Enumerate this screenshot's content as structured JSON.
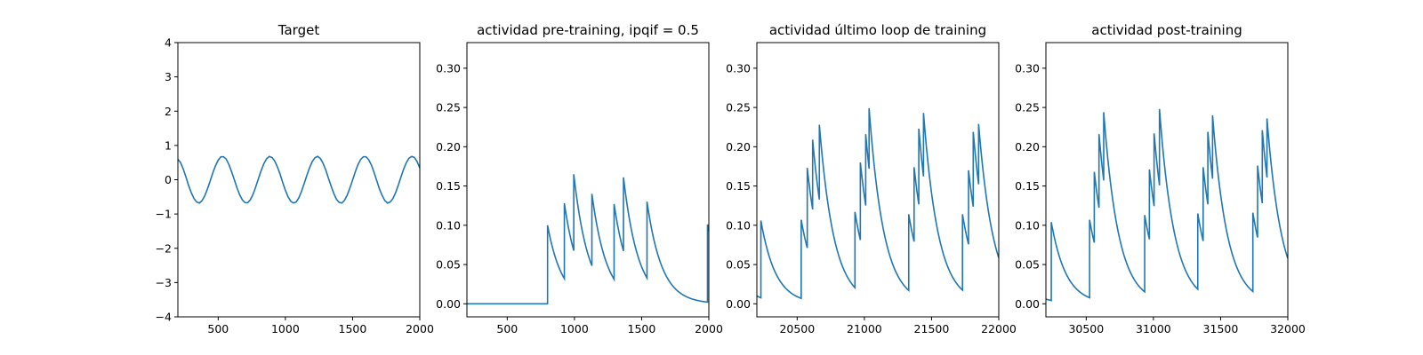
{
  "chart_data": [
    {
      "type": "line",
      "title": "Target",
      "xlim": [
        200,
        2000
      ],
      "ylim": [
        -4,
        4
      ],
      "xticks": [
        500,
        1000,
        1500,
        2000
      ],
      "yticks": [
        -4,
        -3,
        -2,
        -1,
        0,
        1,
        2,
        3,
        4
      ],
      "ytick_labels": [
        "−4",
        "−3",
        "−2",
        "−1",
        "0",
        "1",
        "2",
        "3",
        "4"
      ],
      "series": [
        {
          "color": "#1f77b4",
          "x": [
            200,
            220,
            240,
            260,
            280,
            300,
            320,
            340,
            360,
            380,
            400,
            420,
            440,
            460,
            480,
            500,
            520,
            540,
            560,
            580,
            600,
            620,
            640,
            660,
            680,
            700,
            720,
            740,
            760,
            780,
            800,
            820,
            840,
            860,
            880,
            900,
            920,
            940,
            960,
            980,
            1000,
            1020,
            1040,
            1060,
            1080,
            1100,
            1120,
            1140,
            1160,
            1180,
            1200,
            1220,
            1240,
            1260,
            1280,
            1300,
            1320,
            1340,
            1360,
            1380,
            1400,
            1420,
            1440,
            1460,
            1480,
            1500,
            1520,
            1540,
            1560,
            1580,
            1600,
            1620,
            1640,
            1660,
            1680,
            1700,
            1720,
            1740,
            1760,
            1780,
            1800,
            1820,
            1840,
            1860,
            1880,
            1900,
            1920,
            1940,
            1960,
            1980,
            2000
          ],
          "y": [
            0.6,
            0.5,
            0.31,
            0.08,
            -0.17,
            -0.38,
            -0.55,
            -0.65,
            -0.68,
            -0.61,
            -0.47,
            -0.27,
            -0.04,
            0.2,
            0.41,
            0.57,
            0.67,
            0.67,
            0.6,
            0.44,
            0.23,
            0.0,
            -0.24,
            -0.44,
            -0.59,
            -0.67,
            -0.67,
            -0.58,
            -0.42,
            -0.2,
            0.04,
            0.27,
            0.47,
            0.61,
            0.68,
            0.65,
            0.55,
            0.38,
            0.17,
            -0.08,
            -0.31,
            -0.5,
            -0.63,
            -0.68,
            -0.65,
            -0.53,
            -0.34,
            -0.11,
            0.13,
            0.35,
            0.53,
            0.64,
            0.68,
            0.62,
            0.48,
            0.29,
            0.05,
            -0.18,
            -0.4,
            -0.57,
            -0.66,
            -0.68,
            -0.6,
            -0.45,
            -0.24,
            -0.01,
            0.23,
            0.44,
            0.59,
            0.67,
            0.67,
            0.58,
            0.43,
            0.21,
            -0.03,
            -0.27,
            -0.46,
            -0.61,
            -0.68,
            -0.65,
            -0.55,
            -0.38,
            -0.16,
            0.08,
            0.31,
            0.5,
            0.63,
            0.68,
            0.65,
            0.53,
            0.34
          ]
        }
      ]
    },
    {
      "type": "line",
      "title": "actividad pre-training, ipqif = 0.5",
      "xlim": [
        200,
        2000
      ],
      "ylim": [
        -0.0166,
        0.3326
      ],
      "xticks": [
        500,
        1000,
        1500,
        2000
      ],
      "yticks": [
        0.0,
        0.05,
        0.1,
        0.15,
        0.2,
        0.25,
        0.3
      ],
      "ytick_labels": [
        "0.00",
        "0.05",
        "0.10",
        "0.15",
        "0.20",
        "0.25",
        "0.30"
      ],
      "series": [
        {
          "color": "#1f77b4",
          "spikes": [
            800,
            925,
            995,
            1130,
            1295,
            1365,
            1540,
            1990
          ],
          "peaks": [
            0.1,
            0.128,
            0.165,
            0.14,
            0.127,
            0.161,
            0.13,
            0.101
          ],
          "tau": 110,
          "baseline": 0.0
        }
      ]
    },
    {
      "type": "line",
      "title": "actividad último loop de training",
      "xlim": [
        20200,
        22000
      ],
      "ylim": [
        -0.0166,
        0.3326
      ],
      "xticks": [
        20500,
        21000,
        21500,
        22000
      ],
      "yticks": [
        0.0,
        0.05,
        0.1,
        0.15,
        0.2,
        0.25,
        0.3
      ],
      "ytick_labels": [
        "0.00",
        "0.05",
        "0.10",
        "0.15",
        "0.20",
        "0.25",
        "0.30"
      ],
      "series": [
        {
          "color": "#1f77b4",
          "spikes": [
            20230,
            20530,
            20575,
            20615,
            20665,
            20930,
            20970,
            21010,
            21035,
            21330,
            21370,
            21405,
            21440,
            21730,
            21775,
            21810,
            21850
          ],
          "peaks": [
            0.106,
            0.107,
            0.173,
            0.209,
            0.228,
            0.117,
            0.18,
            0.216,
            0.249,
            0.114,
            0.174,
            0.223,
            0.243,
            0.114,
            0.17,
            0.219,
            0.229
          ],
          "tau": 110,
          "start_value": 0.01
        }
      ]
    },
    {
      "type": "line",
      "title": "actividad post-training",
      "xlim": [
        30200,
        32000
      ],
      "ylim": [
        -0.0166,
        0.3326
      ],
      "xticks": [
        30500,
        31000,
        31500,
        32000
      ],
      "yticks": [
        0.0,
        0.05,
        0.1,
        0.15,
        0.2,
        0.25,
        0.3
      ],
      "ytick_labels": [
        "0.00",
        "0.05",
        "0.10",
        "0.15",
        "0.20",
        "0.25",
        "0.30"
      ],
      "series": [
        {
          "color": "#1f77b4",
          "spikes": [
            30240,
            30525,
            30560,
            30595,
            30630,
            30935,
            30970,
            31005,
            31045,
            31330,
            31370,
            31405,
            31440,
            31740,
            31775,
            31810,
            31845
          ],
          "peaks": [
            0.104,
            0.107,
            0.168,
            0.216,
            0.244,
            0.113,
            0.171,
            0.217,
            0.248,
            0.115,
            0.174,
            0.219,
            0.24,
            0.116,
            0.176,
            0.221,
            0.236
          ],
          "tau": 110,
          "start_value": 0.006
        }
      ]
    }
  ]
}
